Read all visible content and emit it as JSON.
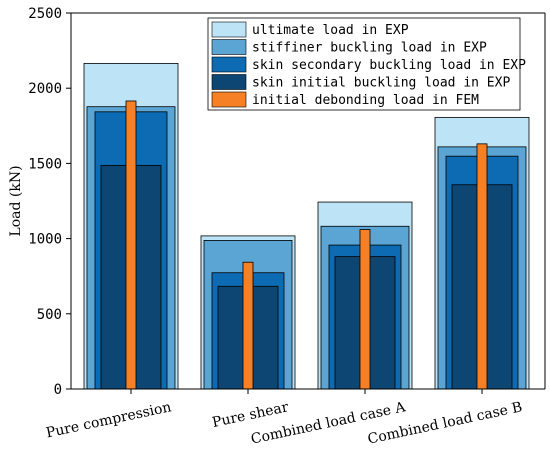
{
  "chart_data": {
    "type": "bar",
    "title": "",
    "xlabel": "",
    "ylabel": "Load (kN)",
    "ylim": [
      0,
      2500
    ],
    "yticks": [
      0,
      500,
      1000,
      1500,
      2000,
      2500
    ],
    "categories": [
      "Pure compression",
      "Pure shear",
      "Combined load case A",
      "Combined load case B"
    ],
    "series": [
      {
        "name": "ultimate load in EXP",
        "color": "#bde3f7",
        "values": [
          2165,
          1018,
          1243,
          1806
        ]
      },
      {
        "name": "stiffiner buckling load in EXP",
        "color": "#5aa5d4",
        "values": [
          1877,
          988,
          1082,
          1610
        ]
      },
      {
        "name": "skin secondary buckling load in EXP",
        "color": "#0c6bb3",
        "values": [
          1843,
          773,
          957,
          1548
        ]
      },
      {
        "name": "skin initial buckling load in EXP",
        "color": "#0d4672",
        "values": [
          1487,
          683,
          880,
          1358
        ]
      },
      {
        "name": "initial debonding load in FEM",
        "color": "#f58025",
        "values": [
          1915,
          843,
          1060,
          1630
        ]
      }
    ],
    "legend_position": "top-right",
    "grid": false
  }
}
